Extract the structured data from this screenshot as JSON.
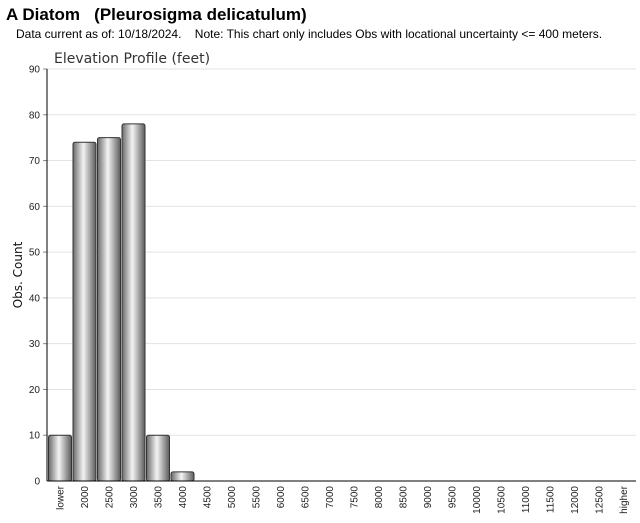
{
  "header": {
    "title": "A Diatom   (Pleurosigma delicatulum)",
    "subtitle": "Data current as of: 10/18/2024.    Note: This chart only includes Obs with locational uncertainty <= 400 meters."
  },
  "chart_data": {
    "type": "bar",
    "title": "Elevation Profile (feet)",
    "xlabel": "",
    "ylabel": "Obs. Count",
    "ylim": [
      0,
      90
    ],
    "yticks": [
      0,
      10,
      20,
      30,
      40,
      50,
      60,
      70,
      80,
      90
    ],
    "grid": true,
    "bar_color": "#b8b8b8",
    "categories": [
      "lower",
      "2000",
      "2500",
      "3000",
      "3500",
      "4000",
      "4500",
      "5000",
      "5500",
      "6000",
      "6500",
      "7000",
      "7500",
      "8000",
      "8500",
      "9000",
      "9500",
      "10000",
      "10500",
      "11000",
      "11500",
      "12000",
      "12500",
      "higher"
    ],
    "values": [
      10,
      74,
      75,
      78,
      10,
      2,
      0,
      0,
      0,
      0,
      0,
      0,
      0,
      0,
      0,
      0,
      0,
      0,
      0,
      0,
      0,
      0,
      0,
      0
    ]
  }
}
